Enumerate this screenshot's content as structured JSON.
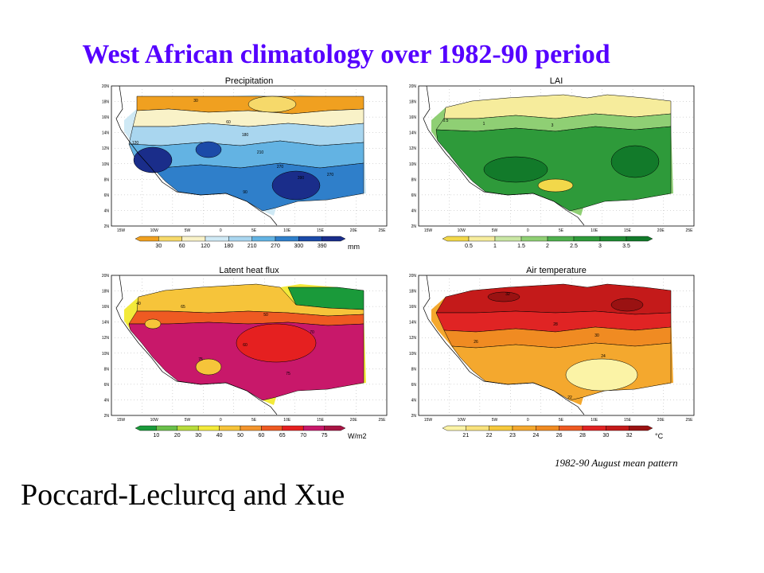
{
  "slide": {
    "title": "West African climatology over 1982-90 period",
    "caption": "1982-90 August mean pattern",
    "authors": "Poccard-Leclurcq and Xue"
  },
  "chart_data": [
    {
      "type": "heatmap",
      "title": "Precipitation",
      "x_ticks": [
        "15W",
        "10W",
        "5W",
        "0",
        "5E",
        "10E",
        "15E",
        "20E",
        "25E"
      ],
      "y_ticks": [
        "2N",
        "4N",
        "6N",
        "8N",
        "10N",
        "12N",
        "14N",
        "16N",
        "18N",
        "20N"
      ],
      "colorbar": {
        "levels": [
          "30",
          "60",
          "120",
          "180",
          "210",
          "270",
          "300",
          "390"
        ],
        "unit": "mm",
        "colors": [
          "#f0a020",
          "#f6d96a",
          "#f9f2c8",
          "#cfe9f5",
          "#a9d6ef",
          "#63b3e3",
          "#2f7fca",
          "#1b4aa8",
          "#1a2d8a"
        ]
      },
      "contour_labels": [
        "30",
        "90",
        "60",
        "120",
        "180",
        "210",
        "270",
        "300",
        "390"
      ]
    },
    {
      "type": "heatmap",
      "title": "LAI",
      "x_ticks": [
        "15W",
        "10W",
        "5W",
        "0",
        "5E",
        "10E",
        "15E",
        "20E",
        "25E"
      ],
      "y_ticks": [
        "2N",
        "4N",
        "6N",
        "8N",
        "10N",
        "12N",
        "14N",
        "16N",
        "18N",
        "20N"
      ],
      "colorbar": {
        "levels": [
          "0.5",
          "1",
          "1.5",
          "2",
          "2.5",
          "3",
          "3.5"
        ],
        "unit": "",
        "colors": [
          "#f2d84a",
          "#f6ec9c",
          "#c9e6a3",
          "#8fcf74",
          "#4fb04e",
          "#2e9a3a",
          "#1e8a32",
          "#127a2a"
        ]
      },
      "contour_labels": [
        "0.5",
        "1",
        "2",
        "3"
      ]
    },
    {
      "type": "heatmap",
      "title": "Latent heat flux",
      "x_ticks": [
        "15W",
        "10W",
        "5W",
        "0",
        "5E",
        "10E",
        "15E",
        "20E",
        "25E"
      ],
      "y_ticks": [
        "2N",
        "4N",
        "6N",
        "8N",
        "10N",
        "12N",
        "14N",
        "16N",
        "18N",
        "20N"
      ],
      "colorbar": {
        "levels": [
          "10",
          "20",
          "30",
          "40",
          "50",
          "60",
          "65",
          "70",
          "75"
        ],
        "unit": "W/m2",
        "colors": [
          "#1a9a3a",
          "#6ac04a",
          "#b8dc3c",
          "#f3ea3a",
          "#f6c43a",
          "#f3952d",
          "#ee5a22",
          "#e52020",
          "#c8186a",
          "#a81444"
        ]
      },
      "contour_labels": [
        "50",
        "30",
        "40",
        "60",
        "65",
        "70",
        "75"
      ]
    },
    {
      "type": "heatmap",
      "title": "Air temperature",
      "x_ticks": [
        "15W",
        "10W",
        "5W",
        "0",
        "5E",
        "10E",
        "15E",
        "20E",
        "25E"
      ],
      "y_ticks": [
        "2N",
        "4N",
        "6N",
        "8N",
        "10N",
        "12N",
        "14N",
        "16N",
        "18N",
        "20N"
      ],
      "colorbar": {
        "levels": [
          "21",
          "22",
          "23",
          "24",
          "26",
          "28",
          "30",
          "32"
        ],
        "unit": "°C",
        "colors": [
          "#fbf3a6",
          "#f8e27c",
          "#f6c93c",
          "#f4a82e",
          "#f08b22",
          "#ee5a22",
          "#e02424",
          "#c41a1a",
          "#9a1212"
        ]
      },
      "contour_labels": [
        "32",
        "28",
        "30",
        "26",
        "24",
        "22"
      ]
    }
  ]
}
